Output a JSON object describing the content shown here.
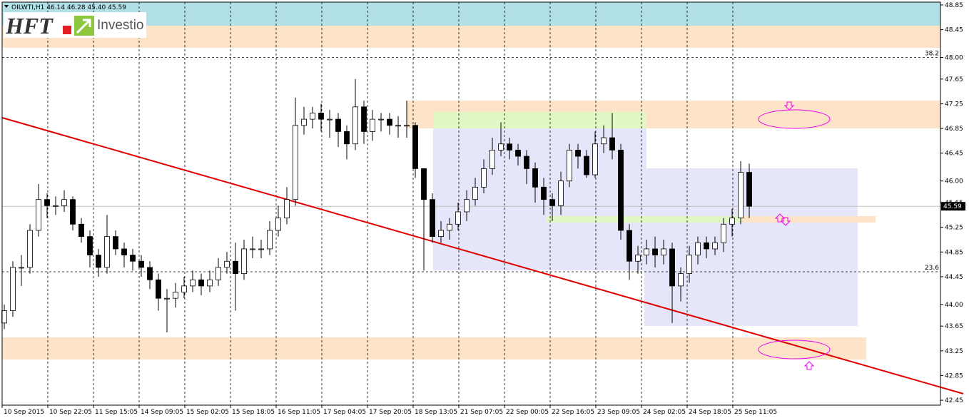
{
  "header": {
    "symbol": "OILWTI,H1",
    "ohlc": [
      "46.14",
      "46.28",
      "45.40",
      "45.59"
    ]
  },
  "logo": {
    "mark": "HFT",
    "name": "Investio"
  },
  "chart_data": {
    "type": "candlestick",
    "colors": {
      "up": "#ffffff",
      "down": "#000000",
      "wick": "#000000"
    },
    "grid": "x",
    "xlim": [
      -0.25,
      109.33
    ],
    "xticks": [
      {
        "value": -0.25,
        "label": "10 Sep 2015"
      },
      {
        "value": 5.08,
        "label": "10 Sep 22:05"
      },
      {
        "value": 10.42,
        "label": "11 Sep 15:05"
      },
      {
        "value": 15.75,
        "label": "14 Sep 09:05"
      },
      {
        "value": 21.08,
        "label": "15 Sep 02:05"
      },
      {
        "value": 26.42,
        "label": "15 Sep 18:05"
      },
      {
        "value": 31.75,
        "label": "16 Sep 11:05"
      },
      {
        "value": 37.08,
        "label": "17 Sep 04:05"
      },
      {
        "value": 42.42,
        "label": "17 Sep 20:05"
      },
      {
        "value": 47.75,
        "label": "18 Sep 13:05"
      },
      {
        "value": 53.08,
        "label": "21 Sep 07:05"
      },
      {
        "value": 58.42,
        "label": "22 Sep 00:05"
      },
      {
        "value": 63.75,
        "label": "22 Sep 16:05"
      },
      {
        "value": 69.08,
        "label": "23 Sep 09:05"
      },
      {
        "value": 74.42,
        "label": "24 Sep 02:05"
      },
      {
        "value": 79.75,
        "label": "24 Sep 18:05"
      },
      {
        "value": 85.08,
        "label": "25 Sep 11:05"
      }
    ],
    "ylim": [
      42.37,
      48.93
    ],
    "yticks": [
      48.85,
      48.45,
      {
        "value": 48,
        "label": "48.00"
      },
      47.65,
      47.25,
      46.85,
      46.45,
      {
        "value": 46,
        "label": "46.00"
      },
      45.65,
      45.25,
      44.85,
      44.45,
      {
        "value": 44,
        "label": "44.00"
      },
      43.65,
      43.25,
      42.85,
      42.45
    ],
    "fib_levels": [
      {
        "level": 38.2,
        "price": 48.0
      },
      {
        "level": 23.6,
        "price": 44.53
      }
    ],
    "open": [
      43.7,
      43.9,
      44.6,
      44.6,
      45.2,
      45.7,
      45.6,
      45.6,
      45.7,
      45.3,
      45.1,
      44.8,
      44.6,
      45.1,
      44.9,
      44.8,
      44.7,
      44.6,
      44.4,
      44.1,
      44.1,
      44.2,
      44.3,
      44.4,
      44.3,
      44.4,
      44.6,
      44.7,
      44.5,
      44.9,
      44.9,
      44.9,
      45.2,
      45.4,
      45.7,
      46.9,
      47.0,
      47.1,
      47.0,
      47.0,
      46.8,
      46.6,
      47.2,
      46.8,
      47.0,
      47.0,
      46.9,
      46.9,
      46.9,
      46.2,
      45.7,
      45.1,
      45.2,
      45.3,
      45.5,
      45.7,
      45.9,
      46.2,
      46.5,
      46.6,
      46.5,
      46.4,
      46.2,
      45.9,
      45.7,
      45.6,
      46.0,
      46.5,
      46.4,
      46.1,
      46.6,
      46.7,
      46.5,
      45.2,
      44.7,
      44.8,
      44.9,
      44.8,
      44.9,
      44.3,
      44.5,
      44.8,
      45.0,
      44.9,
      45.0,
      45.3,
      45.4,
      46.14
    ],
    "high": [
      44.0,
      44.7,
      44.8,
      45.3,
      45.95,
      45.8,
      45.75,
      45.85,
      45.75,
      45.4,
      45.2,
      44.9,
      45.45,
      45.2,
      45.0,
      44.9,
      44.8,
      44.7,
      44.5,
      44.25,
      44.35,
      44.45,
      44.55,
      44.5,
      44.55,
      44.75,
      44.85,
      45.0,
      45.05,
      45.1,
      45.05,
      45.35,
      45.6,
      45.9,
      47.35,
      47.2,
      47.2,
      47.25,
      47.15,
      47.1,
      46.9,
      47.65,
      47.3,
      47.15,
      47.1,
      47.1,
      47.05,
      47.3,
      46.95,
      46.2,
      45.8,
      45.35,
      45.4,
      45.65,
      45.85,
      46.05,
      46.35,
      46.7,
      46.95,
      46.7,
      46.6,
      46.5,
      46.3,
      46.05,
      45.8,
      46.15,
      46.6,
      46.6,
      46.5,
      46.8,
      46.9,
      47.1,
      46.6,
      45.3,
      44.95,
      45.05,
      45.1,
      45.05,
      45.0,
      44.6,
      44.95,
      45.1,
      45.1,
      45.1,
      45.4,
      45.55,
      46.32,
      46.28
    ],
    "low": [
      43.6,
      43.8,
      44.3,
      44.5,
      45.1,
      45.4,
      45.45,
      45.5,
      45.2,
      45.0,
      44.6,
      44.45,
      44.5,
      44.8,
      44.6,
      44.55,
      44.45,
      44.25,
      43.9,
      43.55,
      43.95,
      44.1,
      44.2,
      44.15,
      44.2,
      44.3,
      44.5,
      43.9,
      44.4,
      44.75,
      44.75,
      44.8,
      45.1,
      45.3,
      45.6,
      46.75,
      46.85,
      46.8,
      46.7,
      46.55,
      46.35,
      46.5,
      46.6,
      46.65,
      46.8,
      46.75,
      46.7,
      46.7,
      46.05,
      44.55,
      45.0,
      45.0,
      45.05,
      45.2,
      45.35,
      45.6,
      45.8,
      46.1,
      46.4,
      46.35,
      46.25,
      45.95,
      45.65,
      45.45,
      45.35,
      45.45,
      45.9,
      46.2,
      46.05,
      46.05,
      46.45,
      46.35,
      45.05,
      44.4,
      44.5,
      44.65,
      44.6,
      44.65,
      43.7,
      44.05,
      44.35,
      44.65,
      44.75,
      44.8,
      44.85,
      45.1,
      45.3,
      45.4
    ],
    "close": [
      43.9,
      44.6,
      44.6,
      45.2,
      45.7,
      45.6,
      45.6,
      45.7,
      45.3,
      45.1,
      44.8,
      44.6,
      45.1,
      44.9,
      44.8,
      44.7,
      44.6,
      44.4,
      44.1,
      44.1,
      44.2,
      44.3,
      44.4,
      44.3,
      44.4,
      44.6,
      44.7,
      44.5,
      44.9,
      44.9,
      44.9,
      45.2,
      45.4,
      45.7,
      46.9,
      47.0,
      47.1,
      47.0,
      47.0,
      46.8,
      46.6,
      47.2,
      46.8,
      47.0,
      47.0,
      46.9,
      46.9,
      46.9,
      46.2,
      45.7,
      45.1,
      45.2,
      45.3,
      45.5,
      45.7,
      45.9,
      46.2,
      46.5,
      46.6,
      46.5,
      46.4,
      46.2,
      45.9,
      45.7,
      45.6,
      46.0,
      46.5,
      46.4,
      46.1,
      46.6,
      46.7,
      46.5,
      45.2,
      44.7,
      44.8,
      44.9,
      44.8,
      44.9,
      44.3,
      44.5,
      44.8,
      45.0,
      44.9,
      45.0,
      45.3,
      45.4,
      46.14,
      45.59
    ]
  }
}
